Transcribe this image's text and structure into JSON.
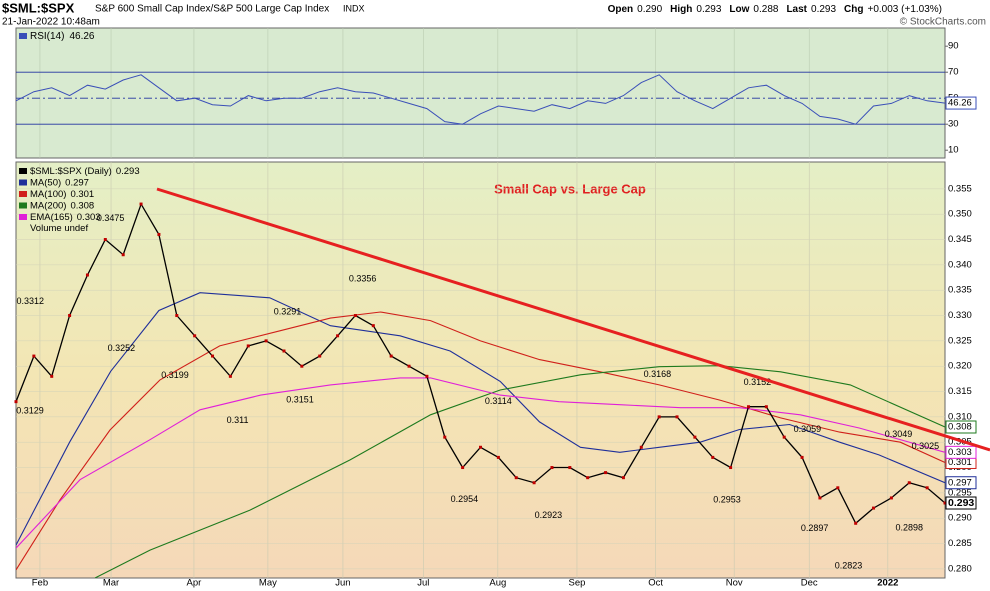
{
  "chart_data": {
    "type": "line",
    "symbol": "$SML:$SPX",
    "description": "S&P 600 Small Cap Index/S&P 500 Large Cap Index",
    "exchange": "INDX",
    "date": "21-Jan-2022 10:48am",
    "quote": [
      {
        "label": "Open",
        "value": "0.290"
      },
      {
        "label": "High",
        "value": "0.293"
      },
      {
        "label": "Low",
        "value": "0.288"
      },
      {
        "label": "Last",
        "value": "0.293"
      },
      {
        "label": "Chg",
        "value": "+0.003 (+1.03%)"
      }
    ],
    "copyright": "© StockCharts.com",
    "title": "Small Cap vs. Large Cap",
    "xlim": [
      0,
      52
    ],
    "xticks": [
      {
        "value": 1.34,
        "label": "Feb"
      },
      {
        "value": 5.32,
        "label": "Mar"
      },
      {
        "value": 9.96,
        "label": "Apr"
      },
      {
        "value": 14.1,
        "label": "May"
      },
      {
        "value": 18.3,
        "label": "Jun"
      },
      {
        "value": 22.8,
        "label": "Jul"
      },
      {
        "value": 26.97,
        "label": "Aug"
      },
      {
        "value": 31.4,
        "label": "Sep"
      },
      {
        "value": 35.8,
        "label": "Oct"
      },
      {
        "value": 40.2,
        "label": "Nov"
      },
      {
        "value": 44.4,
        "label": "Dec"
      },
      {
        "value": 48.8,
        "label": "2022"
      }
    ],
    "ylim": [
      0.2782,
      0.3603
    ],
    "yticks": [
      {
        "value": 0.28,
        "label": "0.280"
      },
      0.285,
      {
        "value": 0.29,
        "label": "0.290"
      },
      0.295,
      {
        "value": 0.3,
        "label": "0.300"
      },
      0.305,
      {
        "value": 0.31,
        "label": "0.310"
      },
      0.315,
      {
        "value": 0.32,
        "label": "0.320"
      },
      0.325,
      {
        "value": 0.33,
        "label": "0.330"
      },
      0.335,
      {
        "value": 0.34,
        "label": "0.340"
      },
      0.345,
      {
        "value": 0.35,
        "label": "0.350"
      },
      0.355
    ],
    "grid": true,
    "price": {
      "name": "$SML:$SPX (Daily)",
      "color": "#000000",
      "x": [
        0,
        1,
        2,
        3,
        4,
        5,
        6,
        7,
        8,
        9,
        10,
        11,
        12,
        13,
        14,
        15,
        16,
        17,
        18,
        19,
        20,
        21,
        22,
        23,
        24,
        25,
        26,
        27,
        28,
        29,
        30,
        31,
        32,
        33,
        34,
        35,
        36,
        37,
        38,
        39,
        40,
        41,
        42,
        43,
        44,
        45,
        46,
        47,
        48,
        49,
        50,
        51,
        52
      ],
      "values": [
        0.313,
        0.322,
        0.318,
        0.33,
        0.338,
        0.345,
        0.342,
        0.352,
        0.346,
        0.33,
        0.326,
        0.322,
        0.318,
        0.324,
        0.325,
        0.323,
        0.32,
        0.322,
        0.326,
        0.33,
        0.328,
        0.322,
        0.32,
        0.318,
        0.306,
        0.3,
        0.304,
        0.302,
        0.298,
        0.297,
        0.3,
        0.3,
        0.298,
        0.299,
        0.298,
        0.304,
        0.31,
        0.31,
        0.306,
        0.302,
        0.3,
        0.312,
        0.312,
        0.306,
        0.302,
        0.294,
        0.296,
        0.289,
        0.292,
        0.294,
        0.297,
        0.296,
        0.293
      ]
    },
    "series": [
      {
        "name": "MA(50)",
        "color": "#1f2f9a",
        "x": [
          0,
          3,
          5.3,
          8,
          10.3,
          14.2,
          17.6,
          21.5,
          24.3,
          27.1,
          29.3,
          31.6,
          33.8,
          36,
          38.3,
          40.5,
          43.3,
          46.1,
          48.3,
          52
        ],
        "values": [
          0.2847,
          0.305,
          0.319,
          0.331,
          0.3345,
          0.3335,
          0.328,
          0.326,
          0.323,
          0.317,
          0.309,
          0.304,
          0.303,
          0.304,
          0.305,
          0.3075,
          0.3085,
          0.305,
          0.3025,
          0.297
        ]
      },
      {
        "name": "MA(100)",
        "color": "#d0201a",
        "x": [
          0,
          2.46,
          5.26,
          8.06,
          11.4,
          14.8,
          17.6,
          20.4,
          23.2,
          26,
          29.3,
          32.7,
          36,
          39.4,
          42.8,
          46.1,
          49.5,
          52
        ],
        "values": [
          0.2798,
          0.2936,
          0.3074,
          0.3173,
          0.324,
          0.327,
          0.3295,
          0.3307,
          0.329,
          0.325,
          0.3213,
          0.3189,
          0.3163,
          0.3133,
          0.3098,
          0.307,
          0.305,
          0.301
        ]
      },
      {
        "name": "MA(200)",
        "color": "#1e7a1e",
        "x": [
          4.42,
          7.5,
          13.1,
          18.7,
          23.2,
          27.1,
          31.6,
          36,
          39.4,
          42.8,
          46.7,
          52
        ],
        "values": [
          0.2782,
          0.2837,
          0.2916,
          0.3015,
          0.3104,
          0.3153,
          0.3183,
          0.3199,
          0.3201,
          0.3189,
          0.3163,
          0.308
        ]
      },
      {
        "name": "EMA(165)",
        "color": "#e020d8",
        "x": [
          0,
          3.58,
          7.5,
          10.3,
          13.7,
          17.6,
          21.5,
          23.2,
          27.1,
          30.4,
          33.8,
          37.2,
          40.5,
          43.9,
          47.2,
          52
        ],
        "values": [
          0.2841,
          0.2976,
          0.3055,
          0.3114,
          0.3143,
          0.3163,
          0.3177,
          0.3177,
          0.3143,
          0.313,
          0.3124,
          0.3118,
          0.3118,
          0.3104,
          0.3078,
          0.303
        ]
      }
    ],
    "volume_label": "Volume undef",
    "extremes": {
      "x": [
        0.8,
        0,
        5.3,
        5.9,
        8.9,
        12.4,
        15.2,
        15.9,
        19.4,
        27.0,
        25.1,
        29.8,
        35.9,
        39.8,
        41.5,
        44.3,
        44.7,
        46.6,
        50.0,
        49.4,
        50.9
      ],
      "values": [
        0.3312,
        0.3129,
        0.3475,
        0.3252,
        0.3199,
        0.311,
        0.3291,
        0.3151,
        0.3356,
        0.3114,
        0.2954,
        0.2923,
        0.3168,
        0.2953,
        0.3152,
        0.3059,
        0.2897,
        0.2823,
        0.2898,
        0.3049,
        0.3025
      ]
    },
    "rsi": {
      "name": "RSI(14)",
      "color": "#3a4fb8",
      "ylim": [
        4,
        104
      ],
      "yticks": [
        10,
        30,
        50,
        70,
        90
      ],
      "levels": [
        30,
        50,
        70
      ],
      "x": [
        0,
        1,
        2,
        3,
        4,
        5,
        6,
        7,
        8,
        9,
        10,
        11,
        12,
        13,
        14,
        15,
        16,
        17,
        18,
        19,
        20,
        21,
        22,
        23,
        24,
        25,
        26,
        27,
        28,
        29,
        30,
        31,
        32,
        33,
        34,
        35,
        36,
        37,
        38,
        39,
        40,
        41,
        42,
        43,
        44,
        45,
        46,
        47,
        48,
        49,
        50,
        51,
        52
      ],
      "values": [
        48,
        55,
        58,
        52,
        60,
        57,
        64,
        68,
        58,
        48,
        50,
        45,
        44,
        52,
        48,
        50,
        50,
        55,
        58,
        55,
        54,
        50,
        46,
        42,
        32,
        30,
        38,
        44,
        42,
        40,
        45,
        42,
        48,
        46,
        52,
        62,
        68,
        55,
        48,
        42,
        50,
        58,
        60,
        52,
        46,
        36,
        34,
        30,
        44,
        46,
        52,
        48,
        46.26
      ]
    }
  }
}
